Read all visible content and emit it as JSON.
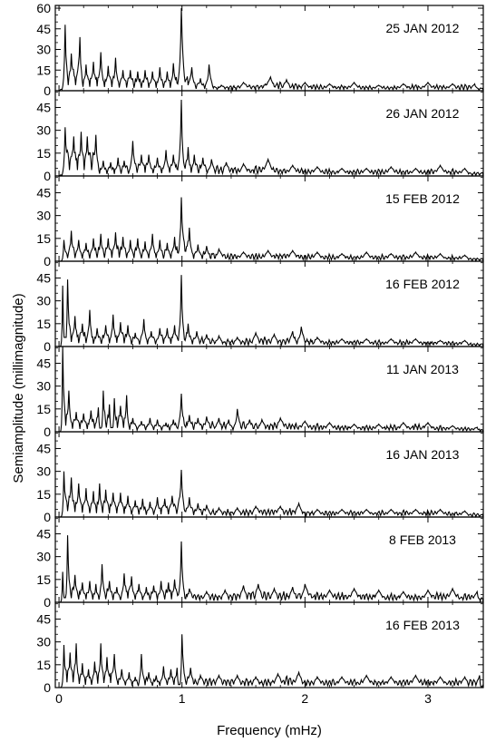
{
  "xlabel": "Frequency (mHz)",
  "ylabel": "Semiamplitude (millimagnitude)",
  "chart_data": {
    "type": "line",
    "xlabel": "Frequency (mHz)",
    "ylabel": "Semiamplitude (millimagnitude)",
    "xlim": [
      -0.03,
      3.45
    ],
    "x_ticks": [
      0,
      1,
      2,
      3
    ],
    "panels": [
      {
        "label": "25 JAN 2012",
        "ylim": [
          0,
          62
        ],
        "y_ticks": [
          0,
          15,
          30,
          45,
          60
        ],
        "peaks": [
          [
            0.05,
            48
          ],
          [
            0.1,
            27
          ],
          [
            0.17,
            39
          ],
          [
            0.22,
            19
          ],
          [
            0.28,
            21
          ],
          [
            0.34,
            28
          ],
          [
            0.4,
            18
          ],
          [
            0.46,
            24
          ],
          [
            0.52,
            15
          ],
          [
            0.58,
            15
          ],
          [
            0.64,
            14
          ],
          [
            0.7,
            15
          ],
          [
            0.76,
            14
          ],
          [
            0.82,
            17
          ],
          [
            0.88,
            14
          ],
          [
            0.93,
            20
          ],
          [
            0.995,
            60
          ],
          [
            1.08,
            17
          ],
          [
            1.15,
            9
          ],
          [
            1.22,
            19
          ],
          [
            1.32,
            4
          ],
          [
            1.5,
            6
          ],
          [
            1.72,
            10
          ],
          [
            1.85,
            8
          ],
          [
            2.0,
            6
          ],
          [
            2.2,
            5
          ],
          [
            2.4,
            6
          ],
          [
            2.6,
            4
          ],
          [
            2.8,
            5
          ],
          [
            3.0,
            6
          ],
          [
            3.2,
            5
          ],
          [
            3.38,
            5
          ]
        ]
      },
      {
        "label": "26 JAN 2012",
        "ylim": [
          0,
          56
        ],
        "y_ticks": [
          0,
          15,
          30,
          45
        ],
        "peaks": [
          [
            0.05,
            32
          ],
          [
            0.12,
            26
          ],
          [
            0.18,
            29
          ],
          [
            0.23,
            26
          ],
          [
            0.3,
            27
          ],
          [
            0.36,
            10
          ],
          [
            0.42,
            9
          ],
          [
            0.48,
            12
          ],
          [
            0.53,
            10
          ],
          [
            0.6,
            23
          ],
          [
            0.67,
            14
          ],
          [
            0.73,
            14
          ],
          [
            0.8,
            12
          ],
          [
            0.87,
            17
          ],
          [
            0.93,
            14
          ],
          [
            0.995,
            50
          ],
          [
            1.05,
            19
          ],
          [
            1.1,
            14
          ],
          [
            1.17,
            12
          ],
          [
            1.24,
            11
          ],
          [
            1.36,
            9
          ],
          [
            1.5,
            8
          ],
          [
            1.7,
            11
          ],
          [
            1.9,
            7
          ],
          [
            2.1,
            6
          ],
          [
            2.3,
            5
          ],
          [
            2.5,
            5
          ],
          [
            2.7,
            6
          ],
          [
            2.9,
            5
          ],
          [
            3.1,
            7
          ],
          [
            3.3,
            5
          ]
        ]
      },
      {
        "label": "15 FEB 2012",
        "ylim": [
          0,
          56
        ],
        "y_ticks": [
          0,
          15,
          30,
          45
        ],
        "peaks": [
          [
            0.04,
            14
          ],
          [
            0.1,
            20
          ],
          [
            0.16,
            14
          ],
          [
            0.22,
            12
          ],
          [
            0.28,
            15
          ],
          [
            0.34,
            18
          ],
          [
            0.4,
            15
          ],
          [
            0.46,
            19
          ],
          [
            0.52,
            16
          ],
          [
            0.58,
            14
          ],
          [
            0.64,
            15
          ],
          [
            0.7,
            13
          ],
          [
            0.76,
            18
          ],
          [
            0.82,
            14
          ],
          [
            0.88,
            12
          ],
          [
            0.94,
            16
          ],
          [
            0.995,
            42
          ],
          [
            1.06,
            22
          ],
          [
            1.13,
            11
          ],
          [
            1.2,
            10
          ],
          [
            1.3,
            8
          ],
          [
            1.5,
            6
          ],
          [
            1.7,
            7
          ],
          [
            1.9,
            7
          ],
          [
            2.1,
            6
          ],
          [
            2.3,
            5
          ],
          [
            2.5,
            6
          ],
          [
            2.7,
            5
          ],
          [
            2.9,
            6
          ],
          [
            3.1,
            5
          ],
          [
            3.3,
            4
          ]
        ]
      },
      {
        "label": "16 FEB 2012",
        "ylim": [
          0,
          56
        ],
        "y_ticks": [
          0,
          15,
          30,
          45
        ],
        "peaks": [
          [
            0.03,
            40
          ],
          [
            0.07,
            44
          ],
          [
            0.13,
            20
          ],
          [
            0.19,
            15
          ],
          [
            0.25,
            24
          ],
          [
            0.31,
            12
          ],
          [
            0.38,
            14
          ],
          [
            0.44,
            21
          ],
          [
            0.5,
            16
          ],
          [
            0.56,
            14
          ],
          [
            0.62,
            9
          ],
          [
            0.69,
            18
          ],
          [
            0.75,
            10
          ],
          [
            0.82,
            12
          ],
          [
            0.88,
            12
          ],
          [
            0.94,
            14
          ],
          [
            0.995,
            47
          ],
          [
            1.05,
            15
          ],
          [
            1.12,
            10
          ],
          [
            1.2,
            8
          ],
          [
            1.3,
            7
          ],
          [
            1.45,
            6
          ],
          [
            1.6,
            9
          ],
          [
            1.75,
            8
          ],
          [
            1.9,
            10
          ],
          [
            1.97,
            13
          ],
          [
            2.1,
            6
          ],
          [
            2.3,
            5
          ],
          [
            2.5,
            5
          ],
          [
            2.7,
            5
          ],
          [
            2.9,
            5
          ],
          [
            3.1,
            4
          ],
          [
            3.3,
            4
          ]
        ]
      },
      {
        "label": "11 JAN 2013",
        "ylim": [
          0,
          56
        ],
        "y_ticks": [
          0,
          15,
          30,
          45
        ],
        "peaks": [
          [
            0.03,
            56
          ],
          [
            0.08,
            27
          ],
          [
            0.14,
            13
          ],
          [
            0.2,
            12
          ],
          [
            0.26,
            14
          ],
          [
            0.32,
            16
          ],
          [
            0.36,
            27
          ],
          [
            0.41,
            18
          ],
          [
            0.45,
            22
          ],
          [
            0.5,
            17
          ],
          [
            0.55,
            24
          ],
          [
            0.6,
            9
          ],
          [
            0.67,
            7
          ],
          [
            0.74,
            9
          ],
          [
            0.8,
            8
          ],
          [
            0.87,
            6
          ],
          [
            0.93,
            8
          ],
          [
            0.995,
            25
          ],
          [
            1.06,
            11
          ],
          [
            1.13,
            9
          ],
          [
            1.2,
            10
          ],
          [
            1.3,
            9
          ],
          [
            1.38,
            8
          ],
          [
            1.45,
            15
          ],
          [
            1.55,
            8
          ],
          [
            1.65,
            8
          ],
          [
            1.8,
            9
          ],
          [
            2.0,
            7
          ],
          [
            2.2,
            6
          ],
          [
            2.4,
            5
          ],
          [
            2.6,
            5
          ],
          [
            2.8,
            6
          ],
          [
            3.0,
            6
          ],
          [
            3.2,
            4
          ],
          [
            3.4,
            3
          ]
        ]
      },
      {
        "label": "16 JAN 2013",
        "ylim": [
          0,
          56
        ],
        "y_ticks": [
          0,
          15,
          30,
          45
        ],
        "peaks": [
          [
            0.04,
            30
          ],
          [
            0.1,
            26
          ],
          [
            0.16,
            22
          ],
          [
            0.22,
            19
          ],
          [
            0.28,
            17
          ],
          [
            0.33,
            22
          ],
          [
            0.38,
            18
          ],
          [
            0.44,
            16
          ],
          [
            0.5,
            16
          ],
          [
            0.56,
            14
          ],
          [
            0.62,
            11
          ],
          [
            0.68,
            12
          ],
          [
            0.74,
            10
          ],
          [
            0.8,
            13
          ],
          [
            0.86,
            12
          ],
          [
            0.92,
            14
          ],
          [
            0.995,
            31
          ],
          [
            1.06,
            13
          ],
          [
            1.13,
            9
          ],
          [
            1.2,
            8
          ],
          [
            1.3,
            6
          ],
          [
            1.45,
            6
          ],
          [
            1.6,
            7
          ],
          [
            1.8,
            7
          ],
          [
            1.95,
            9
          ],
          [
            2.1,
            5
          ],
          [
            2.3,
            5
          ],
          [
            2.5,
            5
          ],
          [
            2.7,
            5
          ],
          [
            2.9,
            5
          ],
          [
            3.1,
            5
          ],
          [
            3.3,
            4
          ]
        ]
      },
      {
        "label": "8 FEB 2013",
        "ylim": [
          0,
          56
        ],
        "y_ticks": [
          0,
          15,
          30,
          45
        ],
        "peaks": [
          [
            0.03,
            20
          ],
          [
            0.07,
            44
          ],
          [
            0.13,
            18
          ],
          [
            0.19,
            13
          ],
          [
            0.25,
            14
          ],
          [
            0.3,
            12
          ],
          [
            0.35,
            25
          ],
          [
            0.41,
            14
          ],
          [
            0.47,
            10
          ],
          [
            0.53,
            19
          ],
          [
            0.59,
            17
          ],
          [
            0.65,
            12
          ],
          [
            0.71,
            10
          ],
          [
            0.77,
            11
          ],
          [
            0.83,
            14
          ],
          [
            0.89,
            13
          ],
          [
            0.94,
            15
          ],
          [
            0.995,
            40
          ],
          [
            1.06,
            9
          ],
          [
            1.2,
            7
          ],
          [
            1.35,
            8
          ],
          [
            1.5,
            11
          ],
          [
            1.62,
            12
          ],
          [
            1.75,
            9
          ],
          [
            1.9,
            10
          ],
          [
            2.0,
            12
          ],
          [
            2.2,
            8
          ],
          [
            2.4,
            9
          ],
          [
            2.6,
            8
          ],
          [
            2.8,
            7
          ],
          [
            3.0,
            8
          ],
          [
            3.2,
            9
          ],
          [
            3.4,
            7
          ]
        ]
      },
      {
        "label": "16 FEB 2013",
        "ylim": [
          0,
          56
        ],
        "y_ticks": [
          0,
          15,
          30,
          45
        ],
        "peaks": [
          [
            0.04,
            28
          ],
          [
            0.09,
            23
          ],
          [
            0.14,
            29
          ],
          [
            0.19,
            16
          ],
          [
            0.24,
            12
          ],
          [
            0.29,
            17
          ],
          [
            0.34,
            29
          ],
          [
            0.39,
            20
          ],
          [
            0.45,
            22
          ],
          [
            0.51,
            12
          ],
          [
            0.57,
            10
          ],
          [
            0.62,
            7
          ],
          [
            0.67,
            22
          ],
          [
            0.73,
            10
          ],
          [
            0.79,
            8
          ],
          [
            0.85,
            14
          ],
          [
            0.91,
            12
          ],
          [
            0.96,
            13
          ],
          [
            1.0,
            35
          ],
          [
            1.07,
            13
          ],
          [
            1.15,
            8
          ],
          [
            1.3,
            8
          ],
          [
            1.45,
            8
          ],
          [
            1.6,
            7
          ],
          [
            1.78,
            9
          ],
          [
            1.95,
            10
          ],
          [
            2.1,
            7
          ],
          [
            2.3,
            7
          ],
          [
            2.5,
            8
          ],
          [
            2.7,
            7
          ],
          [
            2.9,
            8
          ],
          [
            3.1,
            7
          ],
          [
            3.3,
            7
          ],
          [
            3.42,
            8
          ]
        ]
      }
    ]
  }
}
